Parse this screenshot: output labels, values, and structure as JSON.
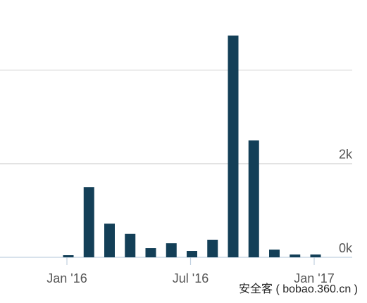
{
  "chart_data": {
    "type": "bar",
    "categories": [
      "Jan '16",
      null,
      null,
      null,
      null,
      null,
      "Jul '16",
      null,
      null,
      null,
      null,
      null,
      "Jan '17"
    ],
    "values": [
      45,
      1500,
      720,
      500,
      195,
      300,
      135,
      376,
      4740,
      2500,
      165,
      60,
      60
    ],
    "color": "#133f57",
    "ylim": [
      0,
      5500
    ],
    "yticks": [
      {
        "value": 0,
        "label": "0k"
      },
      {
        "value": 2000,
        "label": "2k"
      },
      {
        "value": 4000,
        "label": null
      }
    ],
    "grid": true
  },
  "watermark": "安全客 ( bobao.360.cn )"
}
